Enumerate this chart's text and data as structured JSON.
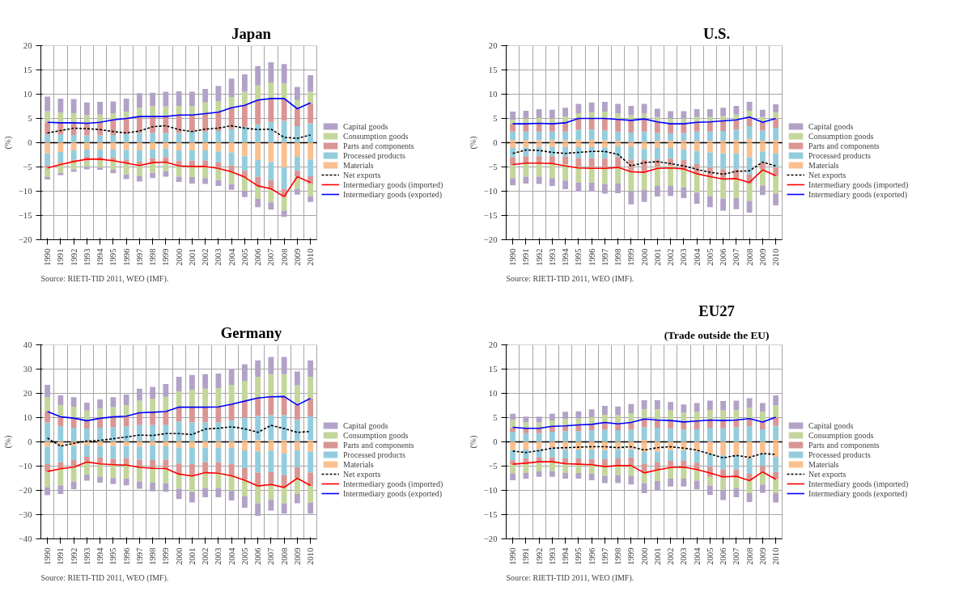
{
  "chart_data": [
    {
      "type": "bar",
      "stacked": true,
      "title": "Japan",
      "ylabel": "(%)",
      "annotations": [
        "Source: RIETI-TID 2011, WEO (IMF)."
      ],
      "grid": true,
      "legend": "right",
      "ylim": [
        -20,
        20
      ],
      "yticks": [
        -20,
        -15,
        -10,
        -5,
        0,
        5,
        10,
        15,
        20
      ],
      "categories": [
        "1990",
        "1991",
        "1992",
        "1993",
        "1994",
        "1995",
        "1996",
        "1997",
        "1998",
        "1999",
        "2000",
        "2001",
        "2002",
        "2003",
        "2004",
        "2005",
        "2006",
        "2007",
        "2008",
        "2009",
        "2010"
      ],
      "series": [
        {
          "name": "Materials",
          "color": "#fac090",
          "values": [
            0.1,
            0.1,
            0.1,
            0.1,
            0.1,
            0.1,
            0.1,
            0.1,
            0.1,
            0.1,
            0.1,
            0.1,
            0.1,
            0.1,
            0.1,
            0.1,
            0.1,
            0.1,
            0.1,
            0.1,
            0.1
          ]
        },
        {
          "name": "Processed products",
          "color": "#93cddd",
          "values": [
            1.6,
            1.6,
            1.5,
            1.4,
            1.4,
            1.5,
            1.7,
            1.9,
            1.9,
            1.9,
            1.9,
            2.2,
            2.2,
            2.3,
            2.7,
            3.2,
            3.7,
            4.2,
            4.4,
            3.3,
            3.9
          ]
        },
        {
          "name": "Parts and components",
          "color": "#d99694",
          "values": [
            2.5,
            2.4,
            2.5,
            2.5,
            2.7,
            3.1,
            3.2,
            3.4,
            3.4,
            3.4,
            3.7,
            3.4,
            3.7,
            3.9,
            4.4,
            4.5,
            5.0,
            4.8,
            4.6,
            3.6,
            4.2
          ]
        },
        {
          "name": "Consumption goods",
          "color": "#c3d69b",
          "values": [
            2.3,
            2.1,
            2.0,
            1.7,
            1.6,
            1.3,
            1.4,
            1.8,
            2.1,
            2.1,
            1.9,
            1.9,
            2.3,
            2.2,
            2.2,
            2.7,
            3.0,
            3.3,
            3.1,
            1.8,
            2.3
          ]
        },
        {
          "name": "Capital goods",
          "color": "#b3a2c7",
          "values": [
            3.0,
            2.9,
            2.9,
            2.6,
            2.6,
            2.5,
            2.7,
            3.0,
            2.8,
            3.0,
            3.0,
            2.9,
            2.8,
            3.2,
            3.8,
            3.6,
            4.0,
            4.2,
            4.0,
            2.7,
            3.4
          ]
        },
        {
          "color": "#fac090",
          "values": [
            -2.2,
            -1.9,
            -1.6,
            -1.4,
            -1.4,
            -1.4,
            -1.5,
            -1.6,
            -1.4,
            -1.2,
            -1.6,
            -1.6,
            -1.6,
            -1.8,
            -2.0,
            -2.8,
            -3.6,
            -4.0,
            -5.1,
            -2.9,
            -3.5
          ]
        },
        {
          "color": "#93cddd",
          "values": [
            -2.5,
            -2.1,
            -1.9,
            -1.5,
            -1.5,
            -1.6,
            -2.0,
            -2.3,
            -1.8,
            -1.8,
            -2.1,
            -2.1,
            -2.1,
            -2.3,
            -2.7,
            -3.0,
            -3.4,
            -3.7,
            -4.4,
            -2.9,
            -3.4
          ]
        },
        {
          "color": "#d99694",
          "values": [
            -0.5,
            -0.3,
            -0.4,
            -0.8,
            -0.8,
            -0.7,
            -0.8,
            -0.9,
            -0.9,
            -1.0,
            -1.1,
            -1.1,
            -1.1,
            -1.1,
            -1.2,
            -1.3,
            -1.9,
            -1.8,
            -1.7,
            -1.1,
            -1.5
          ]
        },
        {
          "color": "#c3d69b",
          "values": [
            -1.8,
            -1.9,
            -1.6,
            -1.3,
            -1.4,
            -1.9,
            -2.3,
            -2.1,
            -2.1,
            -1.9,
            -2.2,
            -2.3,
            -2.5,
            -2.5,
            -2.6,
            -2.8,
            -2.7,
            -2.8,
            -2.8,
            -2.6,
            -2.6
          ]
        },
        {
          "color": "#b3a2c7",
          "values": [
            -0.6,
            -0.5,
            -0.5,
            -0.5,
            -0.5,
            -0.7,
            -0.9,
            -1.1,
            -1.1,
            -1.1,
            -1.1,
            -1.3,
            -1.2,
            -1.2,
            -1.2,
            -1.3,
            -1.7,
            -1.5,
            -1.3,
            -1.2,
            -1.2
          ]
        },
        {
          "name": "Net exports",
          "type": "line",
          "line_style": "dashed",
          "color": "#000000",
          "values": [
            2.0,
            2.5,
            3.0,
            2.9,
            2.7,
            2.3,
            2.0,
            2.4,
            3.3,
            3.5,
            2.7,
            2.3,
            2.8,
            3.0,
            3.5,
            3.0,
            2.7,
            2.8,
            1.1,
            0.9,
            1.6
          ]
        },
        {
          "name": "Intermediary goods (imported)",
          "type": "line",
          "line_style": "solid",
          "color": "#ff0000",
          "values": [
            -5.2,
            -4.5,
            -3.9,
            -3.4,
            -3.4,
            -3.7,
            -4.2,
            -4.7,
            -4.1,
            -4.0,
            -4.8,
            -4.9,
            -4.9,
            -5.3,
            -6.0,
            -7.1,
            -8.9,
            -9.5,
            -11.1,
            -7.0,
            -8.2
          ]
        },
        {
          "name": "Intermediary goods (exported)",
          "type": "line",
          "line_style": "solid",
          "color": "#0000ff",
          "values": [
            4.2,
            4.1,
            4.1,
            4.0,
            4.2,
            4.7,
            5.0,
            5.4,
            5.4,
            5.4,
            5.7,
            5.7,
            6.0,
            6.3,
            7.2,
            7.7,
            8.8,
            9.1,
            9.1,
            7.0,
            8.2
          ]
        }
      ]
    },
    {
      "type": "bar",
      "stacked": true,
      "title": "U.S.",
      "ylabel": "(%)",
      "annotations": [
        "Source: RIETI-TID 2011, WEO (IMF)."
      ],
      "grid": true,
      "legend": "right",
      "ylim": [
        -20,
        20
      ],
      "yticks": [
        -20,
        -15,
        -10,
        -5,
        0,
        5,
        10,
        15,
        20
      ],
      "categories": [
        "1990",
        "1991",
        "1992",
        "1993",
        "1994",
        "1995",
        "1996",
        "1997",
        "1998",
        "1999",
        "2000",
        "2001",
        "2002",
        "2003",
        "2004",
        "2005",
        "2006",
        "2007",
        "2008",
        "2009",
        "2010"
      ],
      "series": [
        {
          "name": "Materials",
          "color": "#fac090",
          "values": [
            0.6,
            0.6,
            0.5,
            0.5,
            0.5,
            0.6,
            0.6,
            0.5,
            0.4,
            0.2,
            0.2,
            0.4,
            0.4,
            0.4,
            0.4,
            0.4,
            0.4,
            0.5,
            0.8,
            0.4,
            0.6
          ]
        },
        {
          "name": "Processed products",
          "color": "#93cddd",
          "values": [
            1.7,
            1.7,
            1.8,
            1.8,
            1.8,
            2.1,
            2.1,
            2.0,
            1.9,
            1.9,
            2.1,
            1.6,
            1.5,
            1.6,
            1.9,
            1.9,
            2.0,
            2.2,
            2.6,
            2.1,
            2.5
          ]
        },
        {
          "name": "Parts and components",
          "color": "#d99694",
          "values": [
            1.6,
            1.6,
            1.7,
            1.6,
            1.8,
            2.3,
            2.3,
            2.5,
            2.5,
            2.5,
            2.6,
            2.3,
            2.0,
            1.9,
            1.9,
            2.0,
            2.1,
            2.0,
            1.9,
            1.7,
            1.9
          ]
        },
        {
          "name": "Consumption goods",
          "color": "#c3d69b",
          "values": [
            0.8,
            1.1,
            1.1,
            1.1,
            1.3,
            1.1,
            1.2,
            1.4,
            1.2,
            1.1,
            1.1,
            1.0,
            1.1,
            1.1,
            1.1,
            1.0,
            1.0,
            1.1,
            1.3,
            1.1,
            1.2
          ]
        },
        {
          "name": "Capital goods",
          "color": "#b3a2c7",
          "values": [
            1.7,
            1.6,
            1.8,
            1.8,
            1.8,
            1.9,
            2.1,
            2.0,
            2.0,
            1.9,
            2.0,
            1.7,
            1.5,
            1.5,
            1.6,
            1.6,
            1.7,
            1.8,
            1.8,
            1.5,
            1.7
          ]
        },
        {
          "color": "#fac090",
          "values": [
            -1.1,
            -1.0,
            -0.9,
            -0.9,
            -0.9,
            -0.9,
            -0.9,
            -1.0,
            -0.7,
            -0.9,
            -1.3,
            -1.1,
            -1.1,
            -1.4,
            -1.7,
            -2.0,
            -2.2,
            -2.2,
            -3.0,
            -1.8,
            -2.2
          ]
        },
        {
          "color": "#93cddd",
          "values": [
            -1.9,
            -1.8,
            -1.9,
            -1.9,
            -2.0,
            -2.3,
            -2.3,
            -2.3,
            -2.3,
            -2.6,
            -2.2,
            -2.4,
            -2.2,
            -2.2,
            -2.7,
            -3.1,
            -3.3,
            -3.3,
            -3.6,
            -2.3,
            -2.9
          ]
        },
        {
          "color": "#d99694",
          "values": [
            -1.7,
            -1.3,
            -1.3,
            -1.5,
            -1.6,
            -1.8,
            -1.9,
            -1.9,
            -2.1,
            -2.5,
            -2.7,
            -1.5,
            -1.5,
            -1.8,
            -1.9,
            -1.9,
            -2.0,
            -2.0,
            -1.8,
            -1.4,
            -1.8
          ]
        },
        {
          "color": "#c3d69b",
          "values": [
            -2.6,
            -2.9,
            -2.9,
            -3.0,
            -3.3,
            -3.2,
            -3.1,
            -3.3,
            -3.3,
            -4.0,
            -3.5,
            -3.9,
            -4.1,
            -3.8,
            -4.0,
            -4.0,
            -4.0,
            -3.9,
            -3.6,
            -3.3,
            -3.6
          ]
        },
        {
          "color": "#b3a2c7",
          "values": [
            -1.5,
            -1.4,
            -1.5,
            -1.6,
            -1.8,
            -1.9,
            -1.9,
            -2.0,
            -2.0,
            -2.7,
            -2.5,
            -2.2,
            -2.1,
            -2.2,
            -2.3,
            -2.3,
            -2.5,
            -2.3,
            -2.4,
            -2.0,
            -2.4
          ]
        },
        {
          "name": "Net exports",
          "type": "line",
          "line_style": "dashed",
          "color": "#000000",
          "values": [
            -2.2,
            -1.5,
            -1.6,
            -2.0,
            -2.2,
            -2.0,
            -1.8,
            -1.8,
            -2.4,
            -4.8,
            -4.1,
            -3.9,
            -4.3,
            -4.8,
            -5.5,
            -6.1,
            -6.5,
            -5.9,
            -5.8,
            -4.0,
            -4.8
          ]
        },
        {
          "name": "Intermediary goods (imported)",
          "type": "line",
          "line_style": "solid",
          "color": "#ff0000",
          "values": [
            -4.5,
            -4.2,
            -4.2,
            -4.3,
            -4.8,
            -5.2,
            -5.3,
            -5.3,
            -5.1,
            -6.0,
            -6.1,
            -5.3,
            -5.2,
            -5.4,
            -6.4,
            -7.0,
            -7.5,
            -7.4,
            -8.2,
            -5.6,
            -6.8
          ]
        },
        {
          "name": "Intermediary goods (exported)",
          "type": "line",
          "line_style": "solid",
          "color": "#0000ff",
          "values": [
            3.9,
            3.9,
            4.0,
            3.9,
            4.1,
            5.0,
            5.0,
            5.0,
            4.8,
            4.6,
            4.9,
            4.3,
            3.9,
            3.9,
            4.2,
            4.3,
            4.5,
            4.7,
            5.3,
            4.2,
            5.0
          ]
        }
      ]
    },
    {
      "type": "bar",
      "stacked": true,
      "title": "Germany",
      "ylabel": "(%)",
      "annotations": [
        "Source: RIETI-TID 2011, WEO (IMF)."
      ],
      "grid": true,
      "legend": "right",
      "ylim": [
        -40,
        40
      ],
      "yticks": [
        -40,
        -30,
        -20,
        -10,
        0,
        10,
        20,
        30,
        40
      ],
      "categories": [
        "1990",
        "1991",
        "1992",
        "1993",
        "1994",
        "1995",
        "1996",
        "1997",
        "1998",
        "1999",
        "2000",
        "2001",
        "2002",
        "2003",
        "2004",
        "2005",
        "2006",
        "2007",
        "2008",
        "2009",
        "2010"
      ],
      "series": [
        {
          "name": "Materials",
          "color": "#fac090",
          "values": [
            0.3,
            0.3,
            0.3,
            0.3,
            0.3,
            0.3,
            0.3,
            0.3,
            0.3,
            0.3,
            0.3,
            0.3,
            0.3,
            0.3,
            0.3,
            0.7,
            0.7,
            0.7,
            0.7,
            0.3,
            0.7
          ]
        },
        {
          "name": "Processed products",
          "color": "#93cddd",
          "values": [
            7.7,
            6.1,
            5.5,
            5.2,
            5.5,
            5.8,
            6.1,
            6.6,
            6.6,
            6.6,
            8.0,
            7.7,
            7.7,
            7.7,
            8.5,
            9.3,
            10.0,
            10.3,
            10.3,
            8.8,
            9.8
          ]
        },
        {
          "name": "Parts and components",
          "color": "#d99694",
          "values": [
            4.5,
            3.9,
            4.0,
            3.2,
            4.0,
            4.3,
            4.2,
            5.2,
            5.5,
            5.6,
            6.0,
            6.5,
            6.5,
            6.5,
            6.8,
            7.0,
            7.4,
            7.6,
            7.6,
            6.3,
            7.3
          ]
        },
        {
          "name": "Consumption goods",
          "color": "#c3d69b",
          "values": [
            5.9,
            4.8,
            4.7,
            4.2,
            3.9,
            3.9,
            4.5,
            4.9,
            5.4,
            6.1,
            6.5,
            6.9,
            7.4,
            7.7,
            7.9,
            8.2,
            8.7,
            9.3,
            9.3,
            7.9,
            9.0
          ]
        },
        {
          "name": "Capital goods",
          "color": "#b3a2c7",
          "values": [
            5.1,
            4.1,
            3.9,
            3.3,
            3.8,
            4.1,
            4.4,
            4.9,
            4.9,
            5.2,
            6.0,
            6.2,
            6.0,
            6.0,
            6.6,
            6.8,
            6.8,
            7.1,
            7.1,
            5.7,
            6.8
          ]
        },
        {
          "color": "#fac090",
          "values": [
            -2.0,
            -1.7,
            -1.7,
            -1.5,
            -1.7,
            -1.7,
            -1.7,
            -2.0,
            -1.5,
            -1.8,
            -2.4,
            -2.5,
            -2.4,
            -2.4,
            -2.5,
            -3.5,
            -4.0,
            -3.7,
            -4.8,
            -3.5,
            -4.0
          ]
        },
        {
          "color": "#93cddd",
          "values": [
            -7.2,
            -6.7,
            -5.8,
            -4.7,
            -4.8,
            -5.3,
            -5.0,
            -5.3,
            -6.0,
            -5.5,
            -6.5,
            -6.7,
            -6.0,
            -6.0,
            -6.7,
            -7.3,
            -8.7,
            -8.8,
            -9.0,
            -7.0,
            -8.7
          ]
        },
        {
          "color": "#d99694",
          "values": [
            -3.0,
            -2.4,
            -2.5,
            -1.9,
            -2.4,
            -2.5,
            -2.8,
            -3.2,
            -3.6,
            -3.8,
            -4.4,
            -4.9,
            -4.3,
            -4.3,
            -4.9,
            -4.9,
            -5.5,
            -5.1,
            -5.2,
            -4.4,
            -5.5
          ]
        },
        {
          "color": "#c3d69b",
          "values": [
            -6.5,
            -7.1,
            -6.3,
            -5.4,
            -5.5,
            -5.4,
            -5.7,
            -5.8,
            -5.7,
            -6.0,
            -6.0,
            -6.5,
            -6.3,
            -6.3,
            -6.0,
            -6.8,
            -7.1,
            -6.3,
            -6.3,
            -6.6,
            -6.8
          ]
        },
        {
          "color": "#b3a2c7",
          "values": [
            -3.3,
            -3.6,
            -3.2,
            -2.5,
            -2.4,
            -2.5,
            -2.7,
            -3.0,
            -3.6,
            -3.5,
            -4.3,
            -4.4,
            -3.8,
            -3.8,
            -4.1,
            -4.7,
            -5.2,
            -4.4,
            -4.3,
            -3.8,
            -4.6
          ]
        },
        {
          "name": "Net exports",
          "type": "line",
          "line_style": "dashed",
          "color": "#000000",
          "values": [
            1.6,
            -1.8,
            -0.6,
            0.3,
            0.6,
            1.3,
            2.0,
            2.8,
            2.6,
            3.4,
            3.4,
            3.0,
            5.3,
            5.6,
            6.2,
            5.4,
            3.9,
            6.8,
            5.5,
            3.9,
            4.3
          ]
        },
        {
          "name": "Intermediary goods (imported)",
          "type": "line",
          "line_style": "solid",
          "color": "#ff0000",
          "values": [
            -12.2,
            -11.1,
            -10.4,
            -8.3,
            -9.1,
            -9.4,
            -9.6,
            -10.5,
            -10.9,
            -11.0,
            -13.3,
            -14.1,
            -12.7,
            -12.9,
            -14.0,
            -15.8,
            -18.2,
            -17.6,
            -18.8,
            -15.0,
            -18.0
          ]
        },
        {
          "name": "Intermediary goods (exported)",
          "type": "line",
          "line_style": "solid",
          "color": "#0000ff",
          "values": [
            12.5,
            10.3,
            9.8,
            8.7,
            9.7,
            10.3,
            10.6,
            12.0,
            12.2,
            12.5,
            14.3,
            14.3,
            14.3,
            14.4,
            15.5,
            16.8,
            18.1,
            18.6,
            18.7,
            15.2,
            17.9
          ]
        }
      ]
    },
    {
      "type": "bar",
      "stacked": true,
      "title": "EU27",
      "subtitle": "(Trade outside the EU)",
      "ylabel": "(%)",
      "annotations": [
        "Source: RIETI-TID 2011, WEO (IMF)."
      ],
      "grid": true,
      "legend": "right",
      "ylim": [
        -20,
        20
      ],
      "yticks": [
        -20,
        -15,
        -10,
        -5,
        0,
        5,
        10,
        15,
        20
      ],
      "categories": [
        "1990",
        "1991",
        "1992",
        "1993",
        "1994",
        "1995",
        "1996",
        "1997",
        "1998",
        "1999",
        "2000",
        "2001",
        "2002",
        "2003",
        "2004",
        "2005",
        "2006",
        "2007",
        "2008",
        "2009",
        "2010"
      ],
      "series": [
        {
          "name": "Materials",
          "color": "#fac090",
          "values": [
            0.1,
            0.1,
            0.1,
            0.1,
            0.1,
            0.1,
            0.1,
            0.1,
            0.1,
            0.1,
            0.4,
            0.1,
            0.1,
            0.1,
            0.1,
            0.1,
            0.1,
            0.1,
            0.1,
            0.1,
            0.4
          ]
        },
        {
          "name": "Processed products",
          "color": "#93cddd",
          "values": [
            2.0,
            1.7,
            1.7,
            2.0,
            2.1,
            2.1,
            2.3,
            2.4,
            2.3,
            2.4,
            2.6,
            2.8,
            2.7,
            2.4,
            2.5,
            2.8,
            2.7,
            2.9,
            3.1,
            2.5,
            2.9
          ]
        },
        {
          "name": "Parts and components",
          "color": "#d99694",
          "values": [
            0.9,
            1.0,
            1.0,
            1.1,
            1.1,
            1.3,
            1.2,
            1.5,
            1.3,
            1.5,
            1.7,
            1.6,
            1.6,
            1.6,
            1.7,
            1.6,
            1.6,
            1.5,
            1.6,
            1.5,
            1.8
          ]
        },
        {
          "name": "Consumption goods",
          "color": "#c3d69b",
          "values": [
            1.5,
            1.2,
            1.2,
            1.2,
            1.4,
            1.3,
            1.5,
            1.6,
            1.8,
            1.9,
            2.0,
            2.2,
            2.1,
            1.9,
            1.9,
            2.1,
            2.1,
            2.1,
            2.2,
            2.1,
            2.4
          ]
        },
        {
          "name": "Capital goods",
          "color": "#b3a2c7",
          "values": [
            1.3,
            1.2,
            1.2,
            1.4,
            1.5,
            1.5,
            1.6,
            1.8,
            1.8,
            1.9,
            1.9,
            1.9,
            1.7,
            1.7,
            1.8,
            1.9,
            1.9,
            1.9,
            2.0,
            1.8,
            2.1
          ]
        },
        {
          "color": "#fac090",
          "values": [
            -1.7,
            -1.6,
            -1.5,
            -1.3,
            -1.5,
            -1.6,
            -1.6,
            -1.7,
            -1.5,
            -1.5,
            -2.1,
            -2.0,
            -1.7,
            -1.7,
            -2.0,
            -2.4,
            -2.8,
            -2.7,
            -3.4,
            -2.4,
            -3.1
          ]
        },
        {
          "color": "#93cddd",
          "values": [
            -2.1,
            -1.8,
            -1.7,
            -1.9,
            -1.9,
            -1.8,
            -1.9,
            -1.9,
            -1.9,
            -1.7,
            -2.4,
            -2.2,
            -2.2,
            -2.2,
            -2.3,
            -2.7,
            -2.9,
            -3.0,
            -3.2,
            -2.6,
            -3.1
          ]
        },
        {
          "color": "#d99694",
          "values": [
            -0.8,
            -1.1,
            -1.1,
            -1.0,
            -1.1,
            -1.2,
            -1.2,
            -1.5,
            -1.5,
            -1.8,
            -1.9,
            -1.6,
            -1.5,
            -1.5,
            -1.5,
            -2.1,
            -1.8,
            -1.8,
            -1.4,
            -1.2,
            -1.5
          ]
        },
        {
          "color": "#c3d69b",
          "values": [
            -1.9,
            -1.9,
            -1.7,
            -1.8,
            -1.9,
            -1.8,
            -1.9,
            -1.9,
            -2.0,
            -2.0,
            -2.1,
            -2.3,
            -2.2,
            -2.2,
            -2.2,
            -1.8,
            -2.4,
            -2.1,
            -2.6,
            -2.6,
            -2.9
          ]
        },
        {
          "color": "#b3a2c7",
          "values": [
            -1.4,
            -1.2,
            -1.2,
            -1.2,
            -1.2,
            -1.2,
            -1.3,
            -1.5,
            -1.6,
            -1.8,
            -2.1,
            -1.9,
            -1.6,
            -1.6,
            -1.8,
            -1.9,
            -2.1,
            -1.8,
            -1.8,
            -1.7,
            -1.9
          ]
        },
        {
          "name": "Net exports",
          "type": "line",
          "line_style": "dashed",
          "color": "#000000",
          "values": [
            -1.9,
            -2.2,
            -1.8,
            -1.3,
            -1.2,
            -1.1,
            -1.0,
            -1.0,
            -1.2,
            -1.0,
            -1.7,
            -1.2,
            -1.0,
            -1.3,
            -1.7,
            -2.5,
            -3.3,
            -2.8,
            -3.2,
            -2.4,
            -2.6
          ]
        },
        {
          "name": "Intermediary goods (imported)",
          "type": "line",
          "line_style": "solid",
          "color": "#ff0000",
          "values": [
            -4.6,
            -4.4,
            -4.1,
            -4.1,
            -4.5,
            -4.6,
            -4.7,
            -5.1,
            -4.9,
            -4.9,
            -6.4,
            -5.8,
            -5.3,
            -5.2,
            -5.7,
            -6.4,
            -7.2,
            -7.1,
            -8.0,
            -6.2,
            -7.7
          ]
        },
        {
          "name": "Intermediary goods (exported)",
          "type": "line",
          "line_style": "solid",
          "color": "#0000ff",
          "values": [
            3.0,
            2.8,
            2.8,
            3.2,
            3.3,
            3.5,
            3.6,
            4.0,
            3.7,
            4.0,
            4.7,
            4.5,
            4.4,
            4.1,
            4.3,
            4.5,
            4.4,
            4.5,
            4.8,
            4.1,
            5.1
          ]
        }
      ]
    }
  ]
}
